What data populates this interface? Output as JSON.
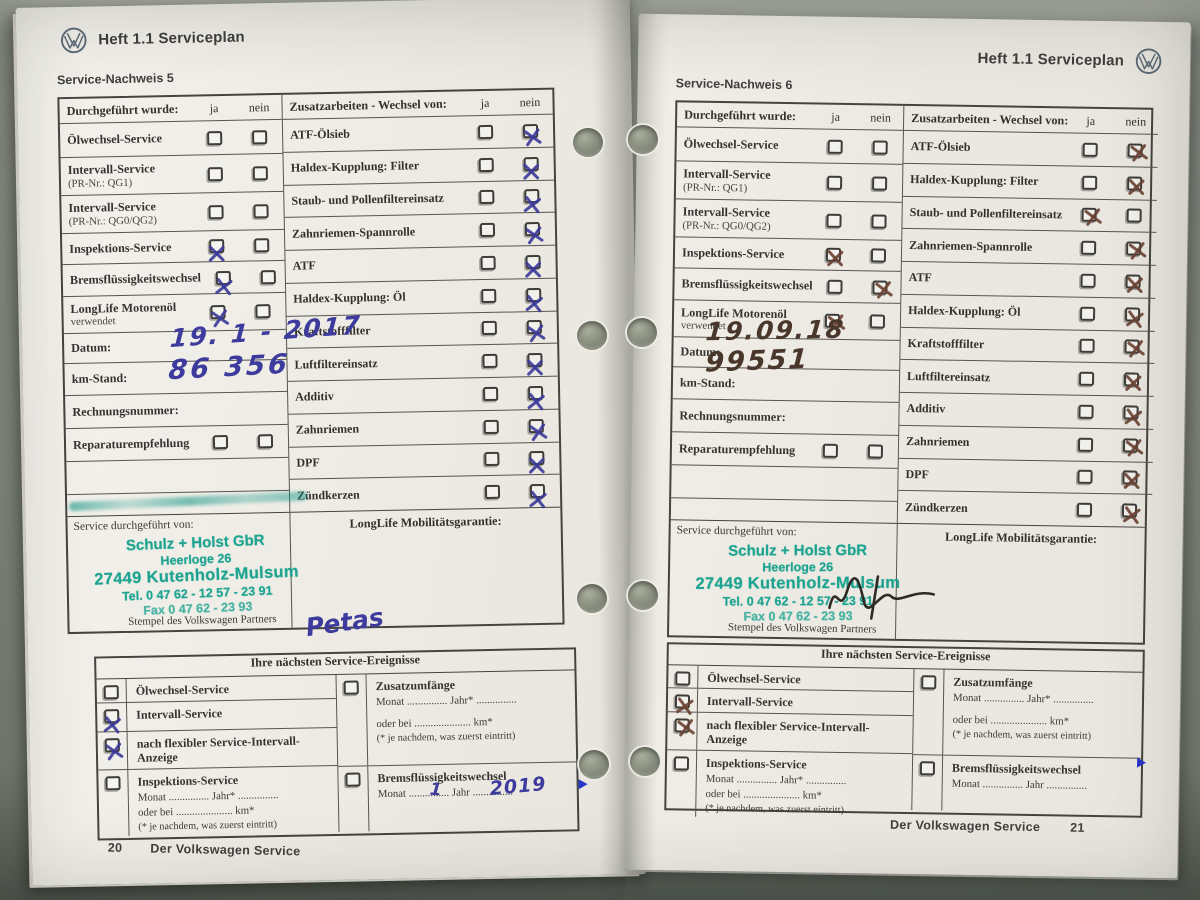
{
  "header": {
    "title": "Heft 1.1 Serviceplan"
  },
  "footer": {
    "brand": "Der Volkswagen Service"
  },
  "labels": {
    "performed_header": "Durchgeführt wurde:",
    "ja": "ja",
    "nein": "nein",
    "zusatz_header": "Zusatzarbeiten - Wechsel von:",
    "datum": "Datum:",
    "km": "km-Stand:",
    "rechnung": "Rechnungsnummer:",
    "reparatur": "Reparaturempfehlung",
    "service_by": "Service durchgeführt von:",
    "longlife": "LongLife Mobilitätsgarantie:",
    "stamp_caption": "Stempel des Volkswagen Partners",
    "next_header": "Ihre nächsten Service-Ereignisse",
    "zusatzumfaenge": "Zusatzumfänge",
    "brems": "Bremsflüssigkeitswechsel",
    "monat_jahr": "Monat ............... Jahr* ...............",
    "monat_jahr_plain": "Monat ............... Jahr ...............",
    "oder_bei": "oder bei ..................... km*",
    "footnote": "(* je nachdem, was zuerst eintritt)"
  },
  "stamp": {
    "l1": "Schulz + Holst GbR",
    "l2": "Heerloge 26",
    "l3": "27449 Kutenholz-Mulsum",
    "l4": "Tel. 0 47 62 - 12 57 - 23 91",
    "l5": "Fax 0 47 62 - 23 93"
  },
  "performed_rows": [
    {
      "label": "Ölwechsel-Service",
      "sub": ""
    },
    {
      "label": "Intervall-Service",
      "sub": "(PR-Nr.: QG1)"
    },
    {
      "label": "Intervall-Service",
      "sub": "(PR-Nr.: QG0/QG2)"
    },
    {
      "label": "Inspektions-Service",
      "sub": ""
    },
    {
      "label": "Bremsflüssigkeitswechsel",
      "sub": ""
    },
    {
      "label": "LongLife Motorenöl",
      "sub": "verwendet"
    }
  ],
  "zusatz_rows": [
    "ATF-Ölsieb",
    "Haldex-Kupplung: Filter",
    "Staub- und Pollenfiltereinsatz",
    "Zahnriemen-Spannrolle",
    "ATF",
    "Haldex-Kupplung: Öl",
    "Kraftstofffilter",
    "Luftfiltereinsatz",
    "Additiv",
    "Zahnriemen",
    "DPF",
    "Zündkerzen"
  ],
  "next_left_rows": [
    {
      "label": "Ölwechsel-Service",
      "details": false
    },
    {
      "label": "Intervall-Service",
      "details": false
    },
    {
      "label": "nach flexibler Service-Intervall-Anzeige",
      "details": false
    },
    {
      "label": "Inspektions-Service",
      "details": true
    }
  ],
  "pages": [
    {
      "side": "left",
      "ink": "blue",
      "nachweis": "Service-Nachweis 5",
      "page_num": "20",
      "performed": [
        {
          "ja": false,
          "nein": false
        },
        {
          "ja": false,
          "nein": false
        },
        {
          "ja": false,
          "nein": false
        },
        {
          "ja": true,
          "nein": false
        },
        {
          "ja": true,
          "nein": false
        },
        {
          "ja": true,
          "nein": false
        }
      ],
      "zusatz": [
        {
          "ja": false,
          "nein": true
        },
        {
          "ja": false,
          "nein": true
        },
        {
          "ja": false,
          "nein": true
        },
        {
          "ja": false,
          "nein": true
        },
        {
          "ja": false,
          "nein": true
        },
        {
          "ja": false,
          "nein": true
        },
        {
          "ja": false,
          "nein": true
        },
        {
          "ja": false,
          "nein": true
        },
        {
          "ja": false,
          "nein": true
        },
        {
          "ja": false,
          "nein": true
        },
        {
          "ja": false,
          "nein": true
        },
        {
          "ja": false,
          "nein": true
        }
      ],
      "datum": "19. 1 - 2017",
      "km": "86 356",
      "rechnung": "",
      "reparatur": {
        "ja": false,
        "nein": false
      },
      "signature": "Petas",
      "sig_svg": false,
      "smear": true,
      "next_left": [
        false,
        true,
        true,
        false
      ],
      "next_right": [
        false,
        false
      ],
      "brems_monat": "1",
      "brems_jahr": "2019"
    },
    {
      "side": "right",
      "ink": "brown",
      "nachweis": "Service-Nachweis 6",
      "page_num": "21",
      "performed": [
        {
          "ja": false,
          "nein": false
        },
        {
          "ja": false,
          "nein": false
        },
        {
          "ja": false,
          "nein": false
        },
        {
          "ja": true,
          "nein": false
        },
        {
          "ja": false,
          "nein": true
        },
        {
          "ja": true,
          "nein": false
        }
      ],
      "zusatz": [
        {
          "ja": false,
          "nein": true
        },
        {
          "ja": false,
          "nein": true
        },
        {
          "ja": true,
          "nein": false
        },
        {
          "ja": false,
          "nein": true
        },
        {
          "ja": false,
          "nein": true
        },
        {
          "ja": false,
          "nein": true
        },
        {
          "ja": false,
          "nein": true
        },
        {
          "ja": false,
          "nein": true
        },
        {
          "ja": false,
          "nein": true
        },
        {
          "ja": false,
          "nein": true
        },
        {
          "ja": false,
          "nein": true
        },
        {
          "ja": false,
          "nein": true
        }
      ],
      "datum": "19.09.18",
      "km": "99551",
      "rechnung": "",
      "reparatur": {
        "ja": false,
        "nein": false
      },
      "signature": "",
      "sig_svg": true,
      "smear": false,
      "next_left": [
        false,
        true,
        true,
        false
      ],
      "next_right": [
        false,
        false
      ],
      "brems_monat": "",
      "brems_jahr": ""
    }
  ]
}
